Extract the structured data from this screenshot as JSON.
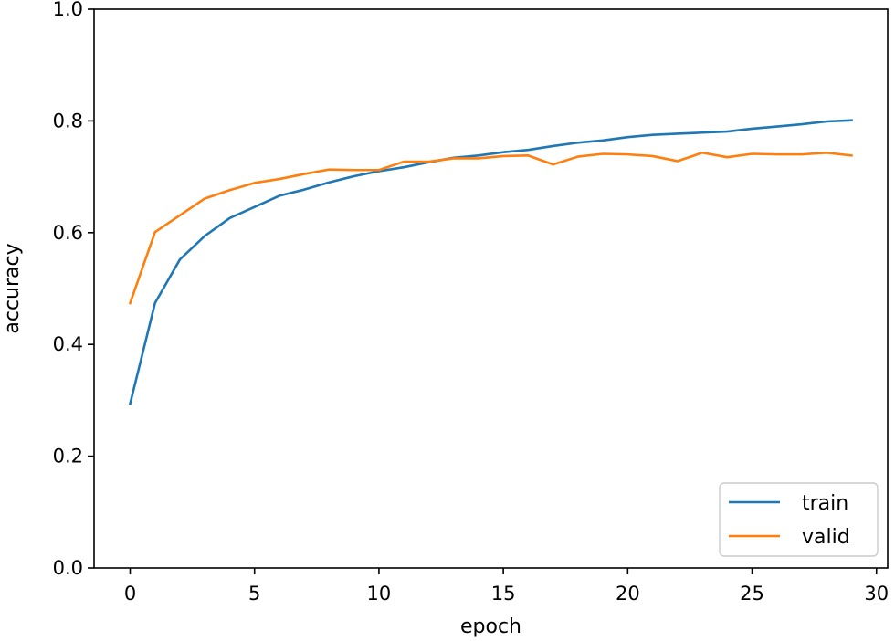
{
  "chart_data": {
    "type": "line",
    "xlabel": "epoch",
    "ylabel": "accuracy",
    "xlim": [
      -1.45,
      30.45
    ],
    "ylim": [
      0.0,
      1.0
    ],
    "xticks": [
      0,
      5,
      10,
      15,
      20,
      25,
      30
    ],
    "yticks": [
      0.0,
      0.2,
      0.4,
      0.6,
      0.8,
      1.0
    ],
    "xtick_labels": [
      "0",
      "5",
      "10",
      "15",
      "20",
      "25",
      "30"
    ],
    "ytick_labels": [
      "0.0",
      "0.2",
      "0.4",
      "0.6",
      "0.8",
      "1.0"
    ],
    "grid": false,
    "legend_position": "bottom-right",
    "series": [
      {
        "name": "train",
        "color": "#1f77b4",
        "x": [
          0,
          1,
          2,
          3,
          4,
          5,
          6,
          7,
          8,
          9,
          10,
          11,
          12,
          13,
          14,
          15,
          16,
          17,
          18,
          19,
          20,
          21,
          22,
          23,
          24,
          25,
          26,
          27,
          28,
          29
        ],
        "values": [
          0.294,
          0.474,
          0.552,
          0.594,
          0.626,
          0.646,
          0.666,
          0.677,
          0.69,
          0.701,
          0.71,
          0.717,
          0.726,
          0.734,
          0.738,
          0.744,
          0.748,
          0.755,
          0.761,
          0.765,
          0.771,
          0.775,
          0.777,
          0.779,
          0.781,
          0.786,
          0.79,
          0.794,
          0.799,
          0.801
        ]
      },
      {
        "name": "valid",
        "color": "#ff7f0e",
        "x": [
          0,
          1,
          2,
          3,
          4,
          5,
          6,
          7,
          8,
          9,
          10,
          11,
          12,
          13,
          14,
          15,
          16,
          17,
          18,
          19,
          20,
          21,
          22,
          23,
          24,
          25,
          26,
          27,
          28,
          29
        ],
        "values": [
          0.474,
          0.601,
          0.631,
          0.661,
          0.676,
          0.689,
          0.696,
          0.705,
          0.713,
          0.712,
          0.712,
          0.727,
          0.727,
          0.733,
          0.733,
          0.737,
          0.738,
          0.722,
          0.736,
          0.741,
          0.74,
          0.737,
          0.728,
          0.743,
          0.735,
          0.741,
          0.74,
          0.74,
          0.743,
          0.738
        ]
      }
    ]
  }
}
